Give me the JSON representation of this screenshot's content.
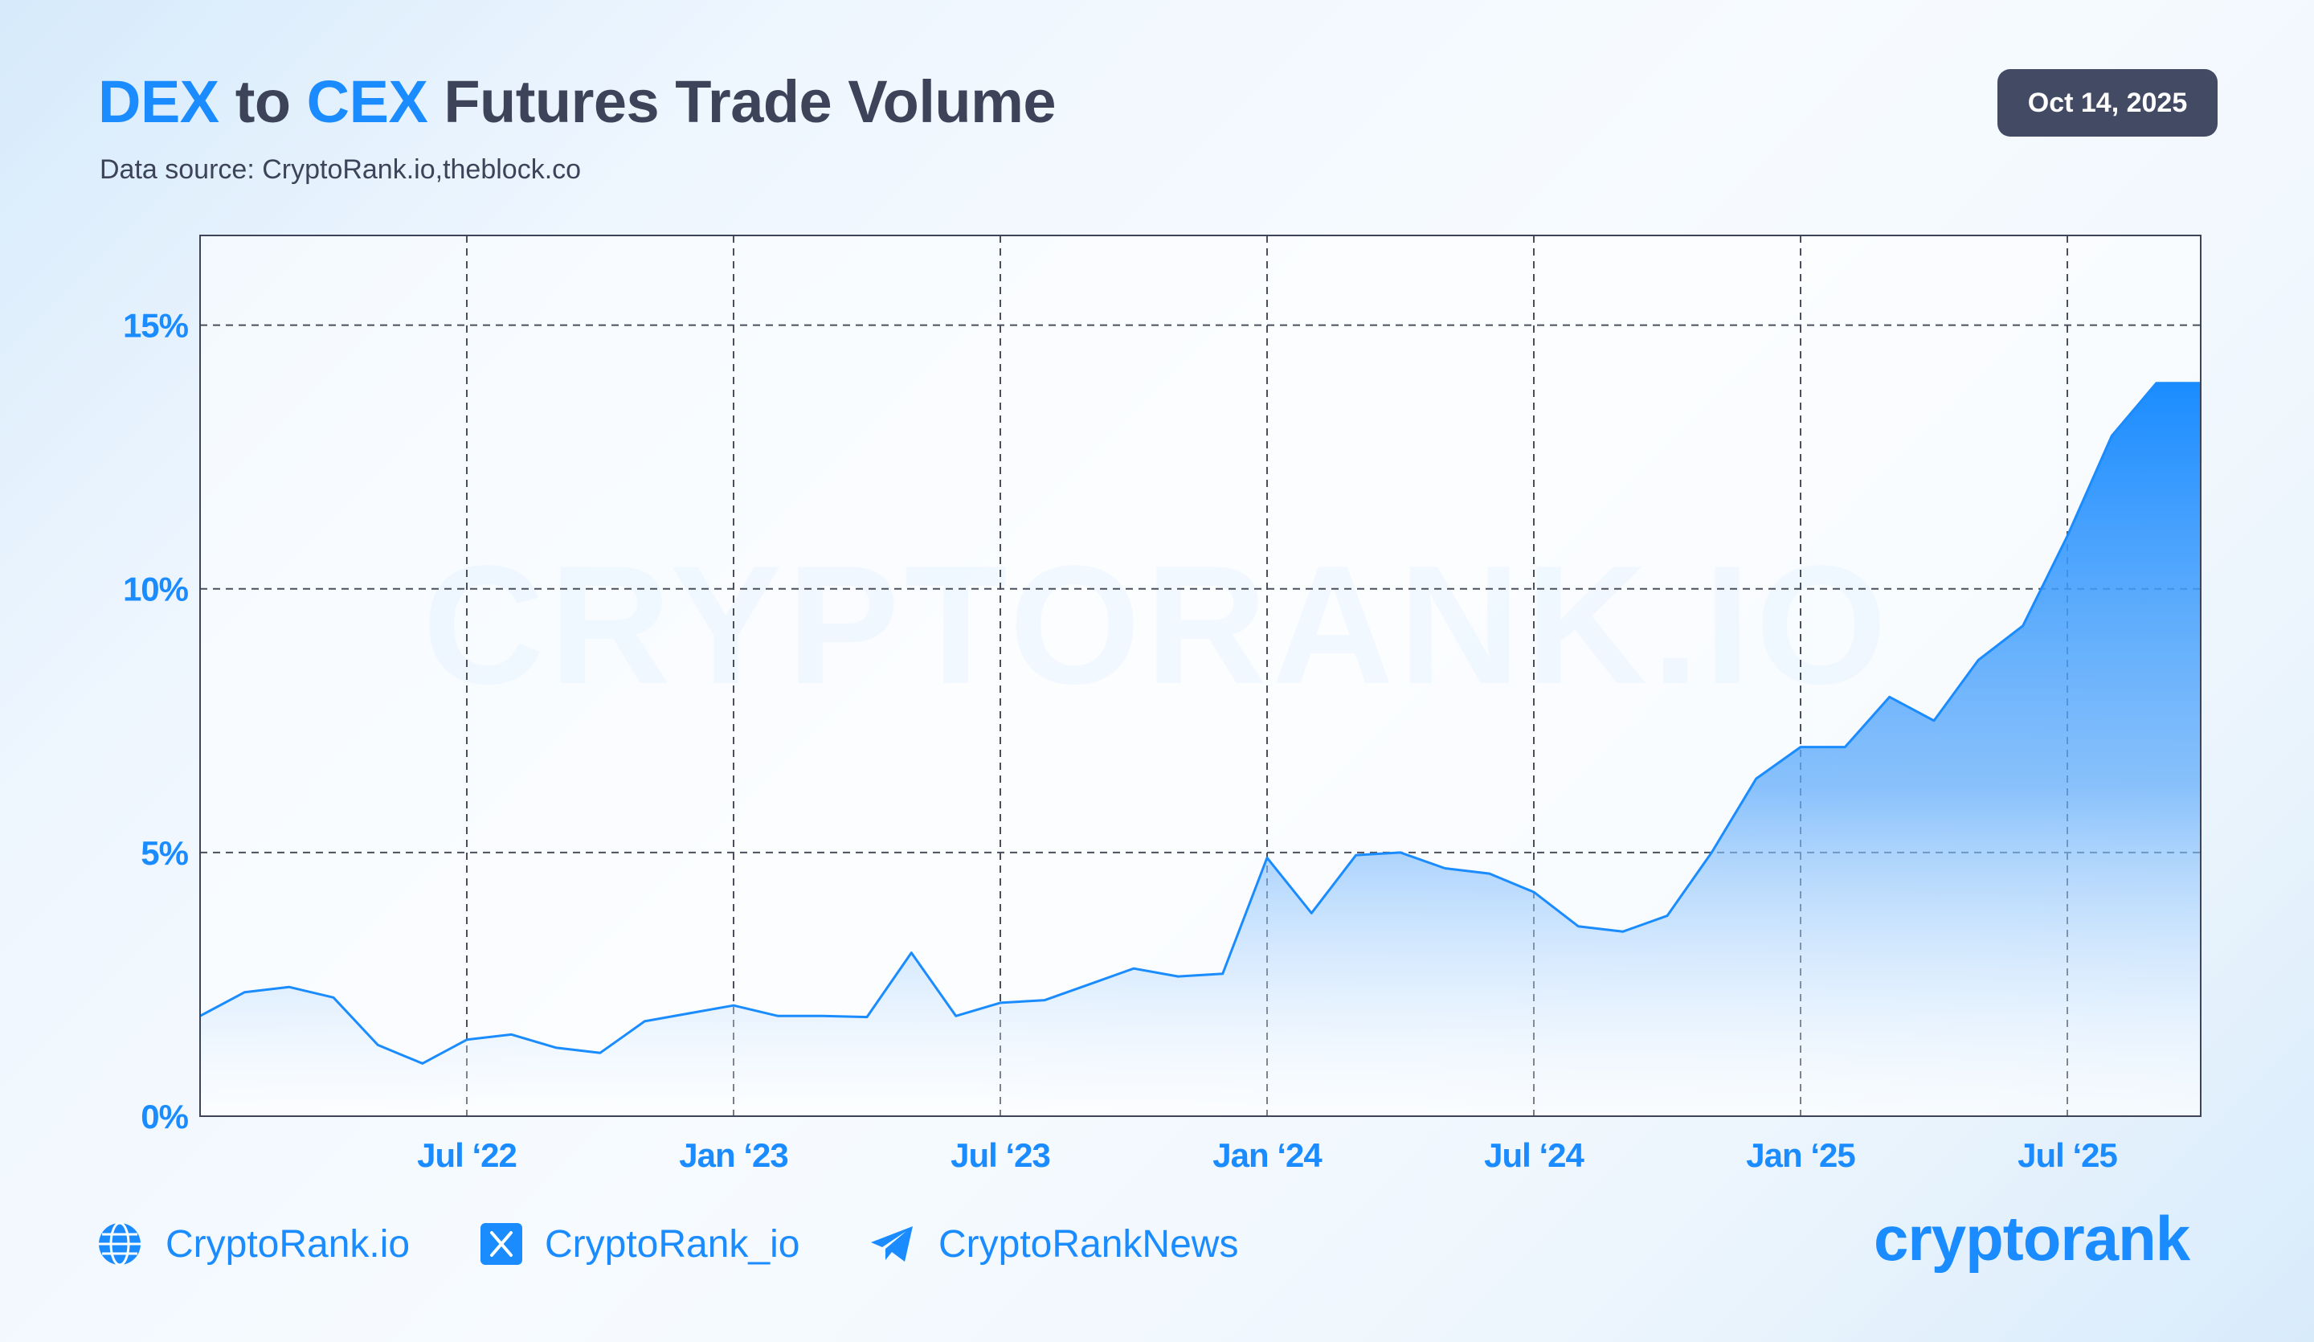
{
  "header": {
    "title_part1": "DEX",
    "title_part2": "to",
    "title_part3": "CEX",
    "title_part4": "Futures Trade Volume",
    "subtitle": "Data source: CryptoRank.io,theblock.co",
    "date": "Oct 14, 2025"
  },
  "watermark": "CRYPTORANK.IO",
  "colors": {
    "accent": "#1a8cff",
    "text_dark": "#3d4459",
    "badge_bg": "#434a63"
  },
  "chart_data": {
    "type": "area",
    "title": "DEX to CEX Futures Trade Volume",
    "xlabel": "",
    "ylabel": "",
    "x_start": "2022-01",
    "x_end": "2025-10",
    "ylim": [
      0,
      16.7
    ],
    "y_ticks": [
      0,
      5,
      10,
      15
    ],
    "y_tick_labels": [
      "0%",
      "5%",
      "10%",
      "15%"
    ],
    "x_ticks": [
      "2022-07",
      "2023-01",
      "2023-07",
      "2024-01",
      "2024-07",
      "2025-01",
      "2025-07"
    ],
    "x_tick_labels": [
      "Jul ‘22",
      "Jan ‘23",
      "Jul ‘23",
      "Jan ‘24",
      "Jul ‘24",
      "Jan ‘25",
      "Jul ‘25"
    ],
    "grid": true,
    "x": [
      "2022-01",
      "2022-02",
      "2022-03",
      "2022-04",
      "2022-05",
      "2022-06",
      "2022-07",
      "2022-08",
      "2022-09",
      "2022-10",
      "2022-11",
      "2022-12",
      "2023-01",
      "2023-02",
      "2023-03",
      "2023-04",
      "2023-05",
      "2023-06",
      "2023-07",
      "2023-08",
      "2023-09",
      "2023-10",
      "2023-11",
      "2023-12",
      "2024-01",
      "2024-02",
      "2024-03",
      "2024-04",
      "2024-05",
      "2024-06",
      "2024-07",
      "2024-08",
      "2024-09",
      "2024-10",
      "2024-11",
      "2024-12",
      "2025-01",
      "2025-02",
      "2025-03",
      "2025-04",
      "2025-05",
      "2025-06",
      "2025-07",
      "2025-08",
      "2025-09",
      "2025-10"
    ],
    "values": [
      1.9,
      2.35,
      2.45,
      2.25,
      1.35,
      1.0,
      1.45,
      1.55,
      1.3,
      1.2,
      1.8,
      1.95,
      2.1,
      1.9,
      1.9,
      1.88,
      3.1,
      1.9,
      2.15,
      2.2,
      2.5,
      2.8,
      2.65,
      2.7,
      4.9,
      3.85,
      4.95,
      5.0,
      4.7,
      4.6,
      4.25,
      3.6,
      3.5,
      3.8,
      5.0,
      6.4,
      7.0,
      7.0,
      7.95,
      7.5,
      8.65,
      9.3,
      11.0,
      12.9,
      13.9,
      13.9
    ]
  },
  "footer": {
    "website": "CryptoRank.io",
    "twitter": "CryptoRank_io",
    "telegram": "CryptoRankNews",
    "logo_text": "cryptorank",
    "website_icon": "globe-icon",
    "twitter_icon": "x-logo-icon",
    "telegram_icon": "telegram-icon"
  }
}
